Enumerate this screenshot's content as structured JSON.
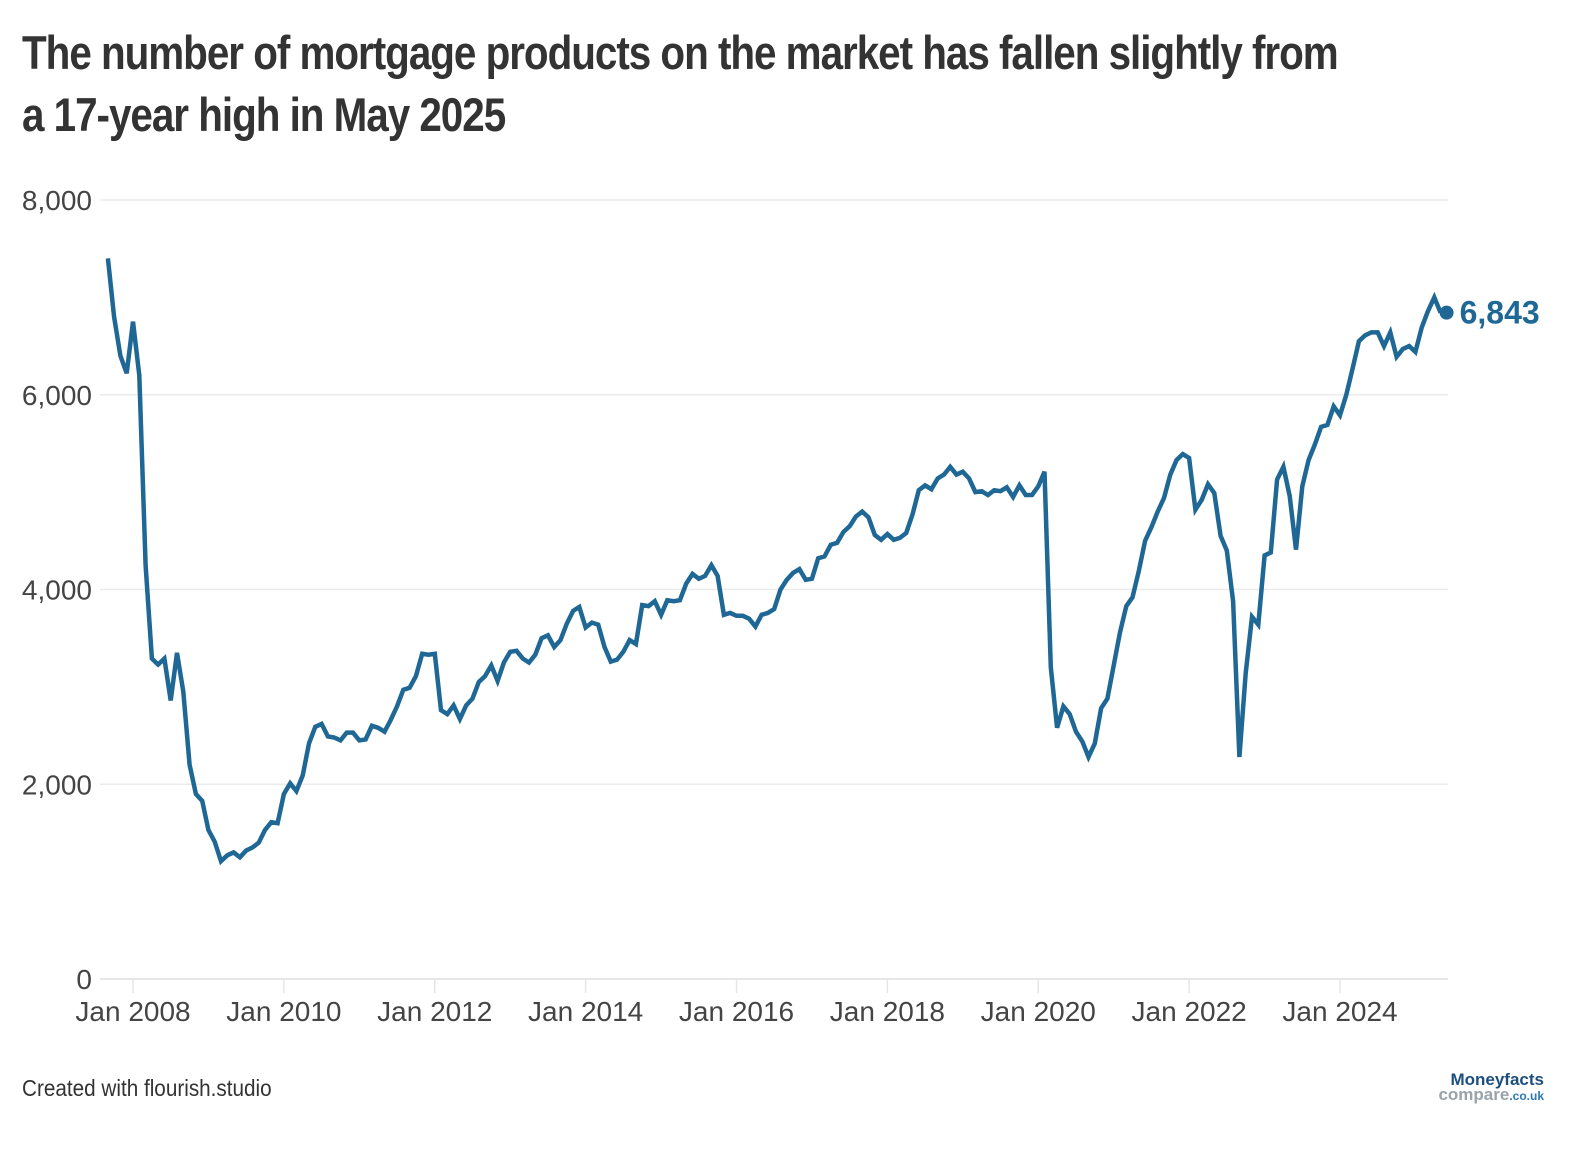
{
  "chart_data": {
    "type": "line",
    "title": "The number of mortgage products on the market has fallen slightly from a 17-year high in May 2025",
    "xlabel": "",
    "ylabel": "",
    "ylim": [
      0,
      8000
    ],
    "yticks": [
      0,
      2000,
      4000,
      6000,
      8000
    ],
    "ytick_labels": [
      "0",
      "2,000",
      "4,000",
      "6,000",
      "8,000"
    ],
    "xtick_labels": [
      "Jan 2008",
      "Jan 2010",
      "Jan 2012",
      "Jan 2014",
      "Jan 2016",
      "Jan 2018",
      "Jan 2020",
      "Jan 2022",
      "Jan 2024"
    ],
    "grid": true,
    "start": "2007-09",
    "frequency": "monthly",
    "color": "#1f6895",
    "series": [
      {
        "name": "Mortgage products",
        "values": [
          7400,
          6800,
          6400,
          6220,
          6750,
          6200,
          4250,
          3290,
          3230,
          3290,
          2860,
          3350,
          2950,
          2200,
          1900,
          1830,
          1530,
          1410,
          1210,
          1270,
          1300,
          1250,
          1320,
          1350,
          1400,
          1530,
          1610,
          1600,
          1900,
          2010,
          1930,
          2090,
          2420,
          2590,
          2620,
          2490,
          2480,
          2450,
          2530,
          2530,
          2450,
          2460,
          2600,
          2580,
          2540,
          2660,
          2800,
          2970,
          2990,
          3110,
          3340,
          3330,
          3340,
          2760,
          2720,
          2810,
          2670,
          2810,
          2880,
          3050,
          3110,
          3220,
          3060,
          3250,
          3360,
          3370,
          3290,
          3250,
          3330,
          3500,
          3530,
          3410,
          3480,
          3650,
          3780,
          3820,
          3610,
          3660,
          3640,
          3410,
          3260,
          3280,
          3360,
          3480,
          3440,
          3840,
          3830,
          3880,
          3740,
          3890,
          3880,
          3890,
          4060,
          4160,
          4110,
          4140,
          4250,
          4140,
          3740,
          3760,
          3730,
          3730,
          3700,
          3620,
          3740,
          3760,
          3800,
          4000,
          4100,
          4170,
          4210,
          4100,
          4110,
          4320,
          4340,
          4460,
          4480,
          4590,
          4650,
          4750,
          4800,
          4740,
          4560,
          4510,
          4570,
          4510,
          4530,
          4580,
          4770,
          5020,
          5070,
          5030,
          5140,
          5180,
          5260,
          5180,
          5210,
          5140,
          5000,
          5010,
          4970,
          5020,
          5010,
          5050,
          4950,
          5070,
          4970,
          4970,
          5060,
          5210,
          3200,
          2580,
          2800,
          2720,
          2540,
          2440,
          2280,
          2420,
          2780,
          2880,
          3220,
          3560,
          3830,
          3920,
          4190,
          4500,
          4640,
          4800,
          4940,
          5180,
          5330,
          5390,
          5350,
          4820,
          4920,
          5080,
          4990,
          4550,
          4400,
          3880,
          2280,
          3140,
          3720,
          3640,
          4350,
          4380,
          5130,
          5260,
          4960,
          4410,
          5060,
          5330,
          5490,
          5670,
          5690,
          5880,
          5790,
          6000,
          6270,
          6550,
          6610,
          6640,
          6640,
          6500,
          6640,
          6390,
          6470,
          6500,
          6440,
          6690,
          6860,
          7000,
          6843
        ]
      }
    ],
    "end_label": {
      "value": 6843,
      "text": "6,843"
    }
  },
  "footer": {
    "credit": "Created with flourish.studio"
  },
  "logo": {
    "line1": "Moneyfacts",
    "line2": "compare",
    "line3": ".co.uk"
  }
}
